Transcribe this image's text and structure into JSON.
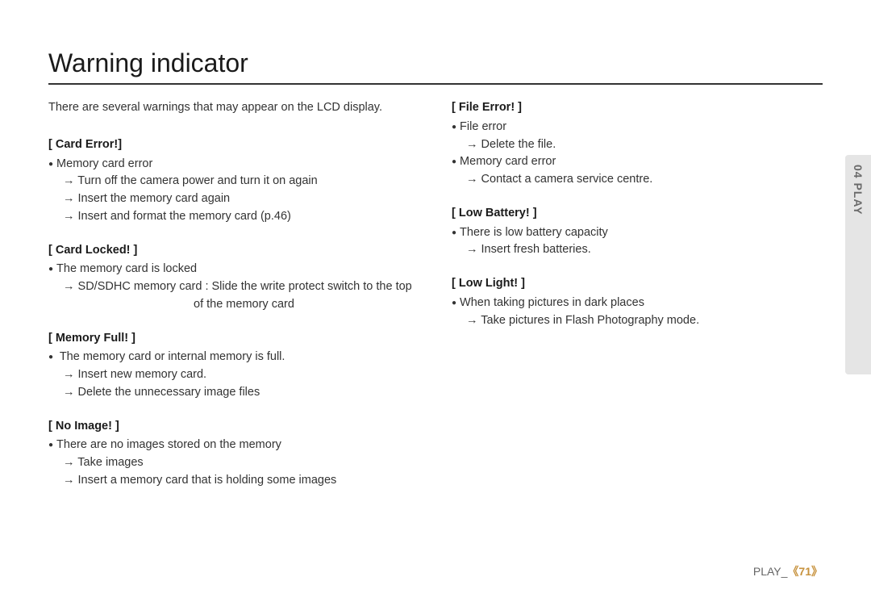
{
  "title": "Warning indicator",
  "intro": "There are several warnings that may appear on the LCD display.",
  "sideTab": "04 PLAY",
  "footer": {
    "label": "PLAY_",
    "page": "《71》"
  },
  "left": {
    "s1": {
      "head": "[ Card Error!]",
      "b1": "Memory card error",
      "a1": "Turn off the camera power and turn it on again",
      "a2": "Insert the memory card again",
      "a3": "Insert and format the memory card (p.46)"
    },
    "s2": {
      "head": "[ Card Locked! ]",
      "b1": "The memory card is locked",
      "a1": "SD/SDHC memory card : Slide the write protect switch to the top",
      "a1c": "of the memory card"
    },
    "s3": {
      "head": "[ Memory Full! ]",
      "b1": " The memory card or internal memory is full.",
      "a1": "Insert new memory card.",
      "a2": "Delete the unnecessary image files"
    },
    "s4": {
      "head": "[ No Image! ]",
      "b1": "There are no images stored on the memory",
      "a1": "Take images",
      "a2": "Insert a memory card that is holding some images"
    }
  },
  "right": {
    "s1": {
      "head": "[ File Error! ]",
      "b1": "File error",
      "a1": "Delete the file.",
      "b2": "Memory card error",
      "a2": "Contact a camera service centre."
    },
    "s2": {
      "head": "[ Low Battery! ]",
      "b1": "There is low battery capacity",
      "a1": "Insert fresh batteries."
    },
    "s3": {
      "head": "[ Low Light! ]",
      "b1": "When taking pictures in dark places",
      "a1": "Take pictures in Flash Photography mode."
    }
  }
}
